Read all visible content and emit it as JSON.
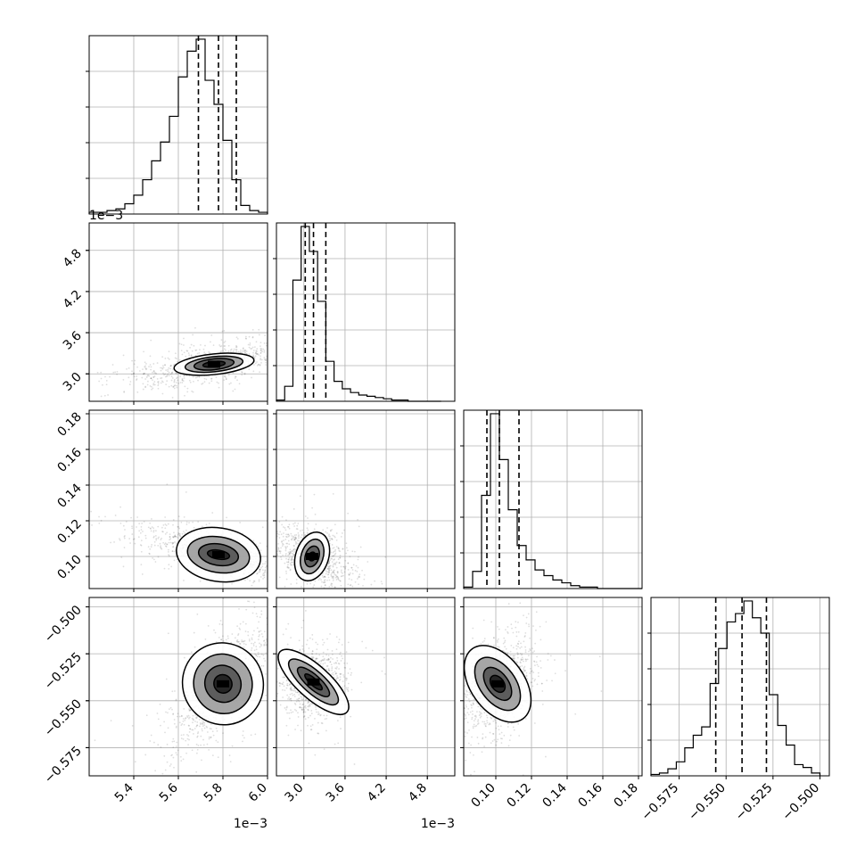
{
  "chart_data": {
    "type": "corner",
    "title": "",
    "parameters": [
      {
        "range": [
          5.2,
          6.0
        ],
        "ticks": [
          5.4,
          5.6,
          5.8,
          6.0
        ],
        "tick_labels": [
          "5.4",
          "5.6",
          "5.8",
          "6.0"
        ],
        "offset_label": "1e−3",
        "quantiles": [
          5.69,
          5.78,
          5.86
        ],
        "histogram": {
          "bin_edges": [
            5.2,
            5.24,
            5.28,
            5.32,
            5.36,
            5.4,
            5.44,
            5.48,
            5.52,
            5.56,
            5.6,
            5.64,
            5.68,
            5.72,
            5.76,
            5.8,
            5.84,
            5.88,
            5.92,
            5.96,
            6.0
          ],
          "counts": [
            1,
            1,
            2,
            3,
            6,
            11,
            20,
            31,
            42,
            57,
            80,
            95,
            102,
            78,
            64,
            43,
            20,
            5,
            2,
            1
          ]
        }
      },
      {
        "range": [
          2.6,
          5.2
        ],
        "ticks": [
          3.0,
          3.6,
          4.2,
          4.8
        ],
        "tick_labels": [
          "3.0",
          "3.6",
          "4.2",
          "4.8"
        ],
        "offset_label": "1e−3",
        "quantiles": [
          3.02,
          3.14,
          3.32
        ],
        "histogram": {
          "bin_edges": [
            2.6,
            2.72,
            2.84,
            2.96,
            3.08,
            3.2,
            3.32,
            3.44,
            3.56,
            3.68,
            3.8,
            3.92,
            4.04,
            4.16,
            4.28,
            4.4,
            4.52,
            4.64,
            4.76,
            4.88,
            5.0
          ],
          "counts": [
            1,
            12,
            97,
            140,
            120,
            80,
            32,
            16,
            10,
            7,
            5,
            4,
            3,
            2,
            1,
            1,
            0,
            0,
            0,
            0
          ]
        }
      },
      {
        "range": [
          0.082,
          0.182
        ],
        "ticks": [
          0.1,
          0.12,
          0.14,
          0.16,
          0.18
        ],
        "tick_labels": [
          "0.10",
          "0.12",
          "0.14",
          "0.16",
          "0.18"
        ],
        "offset_label": "",
        "quantiles": [
          0.095,
          0.102,
          0.113
        ],
        "histogram": {
          "bin_edges": [
            0.082,
            0.087,
            0.092,
            0.097,
            0.102,
            0.107,
            0.112,
            0.117,
            0.122,
            0.127,
            0.132,
            0.137,
            0.142,
            0.147,
            0.152,
            0.157,
            0.162,
            0.167,
            0.172,
            0.177,
            0.182
          ],
          "counts": [
            1,
            12,
            65,
            122,
            90,
            55,
            30,
            20,
            13,
            9,
            6,
            4,
            2,
            1,
            1,
            0,
            0,
            0,
            0,
            0
          ]
        }
      },
      {
        "range": [
          -0.59,
          -0.495
        ],
        "ticks": [
          -0.575,
          -0.55,
          -0.525,
          -0.5
        ],
        "tick_labels": [
          "−0.575",
          "−0.550",
          "−0.525",
          "−0.500"
        ],
        "offset_label": "",
        "quantiles": [
          -0.5555,
          -0.5415,
          -0.5285
        ],
        "histogram": {
          "bin_edges": [
            -0.59,
            -0.5855,
            -0.581,
            -0.5765,
            -0.572,
            -0.5675,
            -0.563,
            -0.5585,
            -0.554,
            -0.5495,
            -0.545,
            -0.5405,
            -0.536,
            -0.5315,
            -0.527,
            -0.5225,
            -0.518,
            -0.5135,
            -0.509,
            -0.5045,
            -0.5
          ],
          "counts": [
            1,
            2,
            5,
            10,
            20,
            29,
            35,
            66,
            91,
            110,
            116,
            125,
            113,
            102,
            58,
            36,
            22,
            8,
            6,
            2
          ]
        }
      }
    ],
    "pair_plots": [
      {
        "x": 0,
        "y": 1,
        "mode": {
          "x": 5.76,
          "y": 3.14
        },
        "spread": {
          "x": 0.11,
          "y": 0.15
        },
        "tilt": -10,
        "contours": [
          {
            "rx": 0.05,
            "ry": 0.04
          },
          {
            "rx": 0.09,
            "ry": 0.08
          },
          {
            "rx": 0.13,
            "ry": 0.11
          },
          {
            "rx": 0.18,
            "ry": 0.15
          }
        ]
      },
      {
        "x": 0,
        "y": 2,
        "mode": {
          "x": 5.78,
          "y": 0.101
        },
        "spread": {
          "x": 0.12,
          "y": 0.007
        },
        "tilt": 15,
        "contours": [
          {
            "rx": 0.05,
            "ry": 0.0025
          },
          {
            "rx": 0.09,
            "ry": 0.006
          },
          {
            "rx": 0.14,
            "ry": 0.01
          },
          {
            "rx": 0.19,
            "ry": 0.015
          }
        ]
      },
      {
        "x": 1,
        "y": 2,
        "mode": {
          "x": 3.12,
          "y": 0.1
        },
        "spread": {
          "x": 0.18,
          "y": 0.008
        },
        "tilt": 30,
        "contours": [
          {
            "rx": 0.05,
            "ry": 0.0025
          },
          {
            "rx": 0.1,
            "ry": 0.006
          },
          {
            "rx": 0.16,
            "ry": 0.01
          },
          {
            "rx": 0.24,
            "ry": 0.014
          }
        ]
      },
      {
        "x": 0,
        "y": 3,
        "mode": {
          "x": 5.8,
          "y": -0.541
        },
        "spread": {
          "x": 0.11,
          "y": 0.01
        },
        "tilt": -55,
        "contours": [
          {
            "rx": 0.04,
            "ry": 0.005
          },
          {
            "rx": 0.08,
            "ry": 0.01
          },
          {
            "rx": 0.13,
            "ry": 0.016
          },
          {
            "rx": 0.18,
            "ry": 0.022
          }
        ]
      },
      {
        "x": 1,
        "y": 3,
        "mode": {
          "x": 3.14,
          "y": -0.54
        },
        "spread": {
          "x": 0.15,
          "y": 0.01
        },
        "tilt": -80,
        "contours": [
          {
            "rx": 0.05,
            "ry": 0.006
          },
          {
            "rx": 0.1,
            "ry": 0.011
          },
          {
            "rx": 0.16,
            "ry": 0.017
          },
          {
            "rx": 0.24,
            "ry": 0.024
          }
        ]
      },
      {
        "x": 2,
        "y": 3,
        "mode": {
          "x": 0.101,
          "y": -0.541
        },
        "spread": {
          "x": 0.009,
          "y": 0.01
        },
        "tilt": -60,
        "contours": [
          {
            "rx": 0.0035,
            "ry": 0.005
          },
          {
            "rx": 0.006,
            "ry": 0.01
          },
          {
            "rx": 0.01,
            "ry": 0.016
          },
          {
            "rx": 0.015,
            "ry": 0.023
          }
        ]
      }
    ],
    "grid": true,
    "legend": "none"
  }
}
